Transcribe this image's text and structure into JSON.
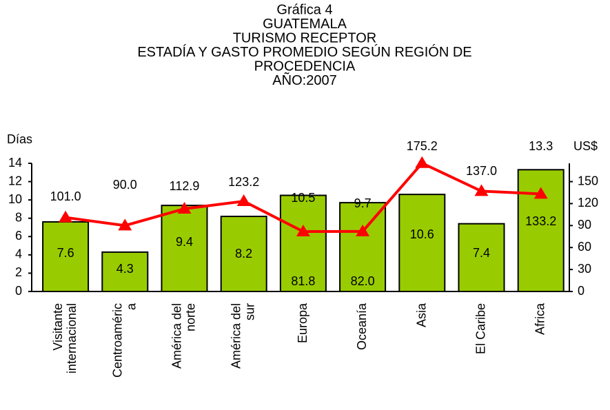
{
  "chart_data": {
    "type": "bar-line",
    "title": [
      "Gráfica 4",
      "GUATEMALA",
      "TURISMO RECEPTOR",
      "ESTADÍA Y GASTO PROMEDIO SEGÚN REGIÓN DE",
      "PROCEDENCIA",
      "AÑO:2007"
    ],
    "y_label": "Días",
    "y2_label": "US$",
    "categories": [
      "Visitante\ninternacional",
      "Centroaméric\na",
      "América del\nnorte",
      "América del\nsur",
      "Europa",
      "Oceanía",
      "Asia",
      "El Caribe",
      "Africa"
    ],
    "series": [
      {
        "type": "bar",
        "color": "#99cc00",
        "values": [
          7.6,
          4.3,
          9.4,
          8.2,
          10.5,
          9.7,
          10.6,
          7.4,
          13.3
        ]
      },
      {
        "type": "line",
        "axis": "y2",
        "color": "#ff0000",
        "values": [
          101.0,
          90.0,
          112.9,
          123.2,
          81.8,
          82.0,
          175.2,
          137.0,
          133.2
        ],
        "value_labels": [
          "101.0",
          "90.0",
          "112.9",
          "123.2",
          "81.8",
          "82.0",
          "175.2",
          "137.0",
          "133.2"
        ]
      }
    ],
    "ylim": [
      0,
      14
    ],
    "yticks": [
      0,
      2,
      4,
      6,
      8,
      10,
      12,
      14
    ],
    "y2lim": [
      0,
      175
    ],
    "y2ticks": [
      0,
      30,
      60,
      90,
      120,
      150
    ]
  }
}
